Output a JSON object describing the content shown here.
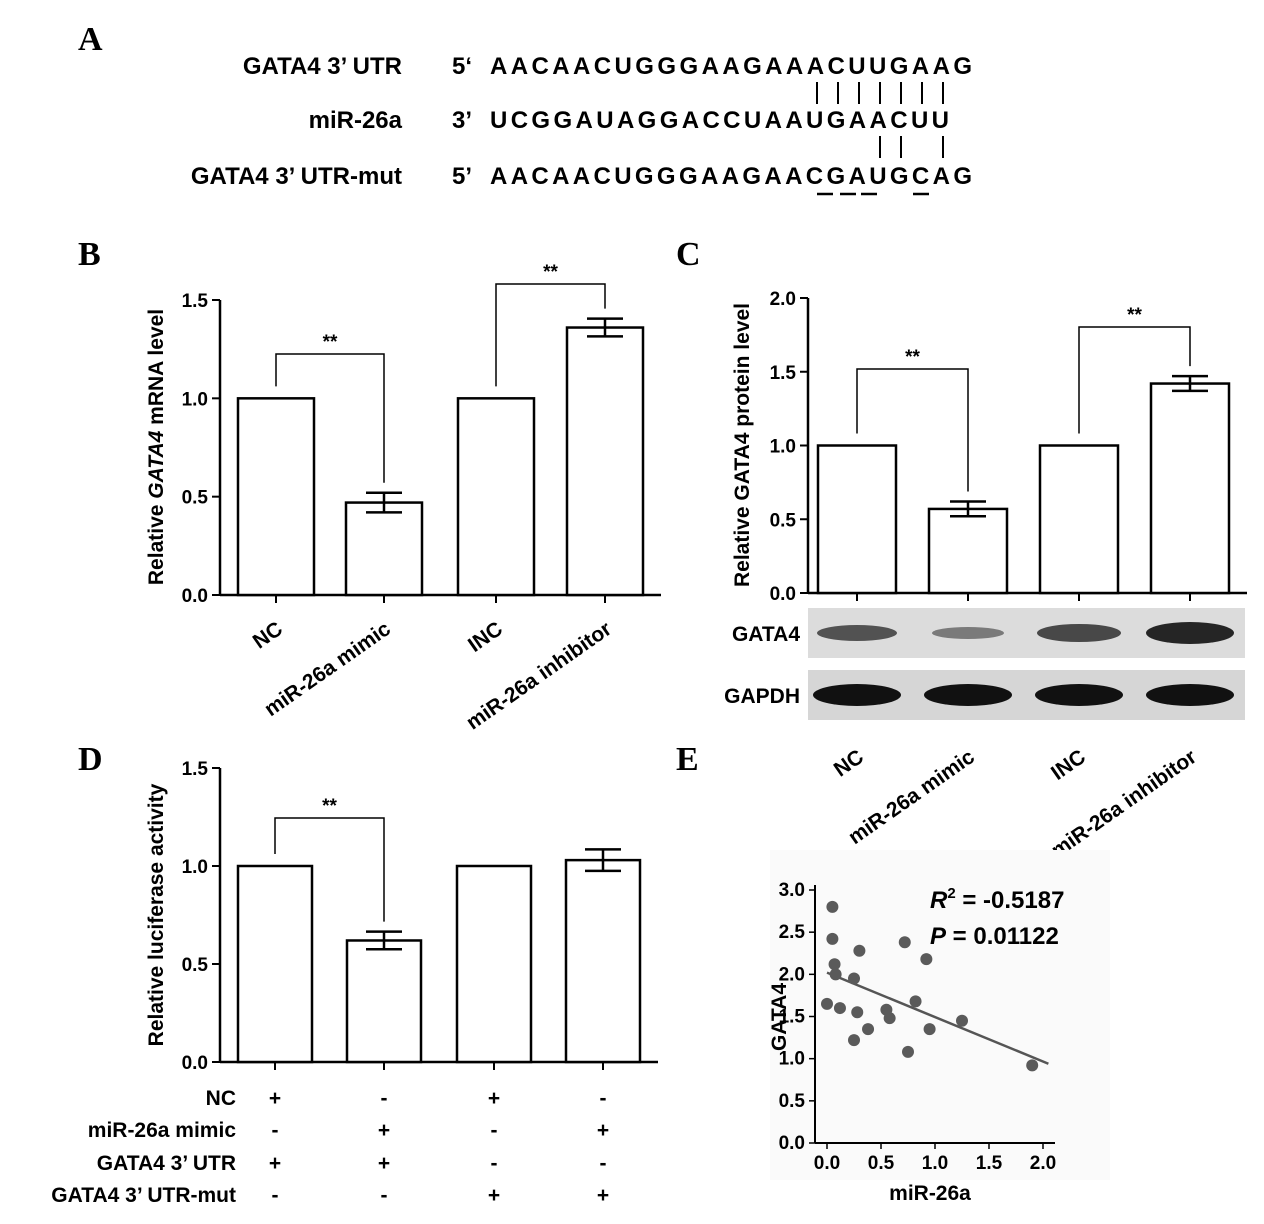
{
  "panel_labels": {
    "a": "A",
    "b": "B",
    "c": "C",
    "d": "D",
    "e": "E"
  },
  "panel_a": {
    "rows": [
      {
        "name": "GATA4 3’ UTR",
        "end": "5‘",
        "seq": "AACAACUGGGAAGAAACUUGAAG"
      },
      {
        "name": "miR-26a",
        "end": "3’",
        "seq": "UCGGAUAGGACCUAAUGAACUU"
      },
      {
        "name": "GATA4 3’ UTR-mut",
        "end": "5’",
        "seq": "AACAACUGGGAAGAACGAUGCAG"
      }
    ]
  },
  "chart_data": [
    {
      "id": "B",
      "type": "bar",
      "ylabel": "Relative GATA4 mRNA level",
      "ylabel_italic_part": "GATA4",
      "categories": [
        "NC",
        "miR-26a mimic",
        "INC",
        "miR-26a inhibitor"
      ],
      "values": [
        1.0,
        0.47,
        1.0,
        1.36
      ],
      "errors": [
        0,
        0.05,
        0,
        0.045
      ],
      "ylim": [
        0,
        1.5
      ],
      "yticks": [
        "0.0",
        "0.5",
        "1.0",
        "1.5"
      ],
      "significance": [
        {
          "pair": [
            0,
            1
          ],
          "label": "**"
        },
        {
          "pair": [
            2,
            3
          ],
          "label": "**"
        }
      ]
    },
    {
      "id": "C",
      "type": "bar",
      "ylabel": "Relative GATA4 protein level",
      "categories": [
        "NC",
        "miR-26a mimic",
        "INC",
        "miR-26a inhibitor"
      ],
      "values": [
        1.0,
        0.57,
        1.0,
        1.42
      ],
      "errors": [
        0,
        0.05,
        0,
        0.05
      ],
      "ylim": [
        0,
        2.0
      ],
      "yticks": [
        "0.0",
        "0.5",
        "1.0",
        "1.5",
        "2.0"
      ],
      "significance": [
        {
          "pair": [
            0,
            1
          ],
          "label": "**"
        },
        {
          "pair": [
            2,
            3
          ],
          "label": "**"
        }
      ],
      "blot_labels": [
        "GATA4",
        "GAPDH"
      ]
    },
    {
      "id": "D",
      "type": "bar",
      "ylabel": "Relative luciferase activity",
      "values": [
        1.0,
        0.62,
        1.0,
        1.03
      ],
      "errors": [
        0,
        0.045,
        0,
        0.055
      ],
      "ylim": [
        0,
        1.5
      ],
      "yticks": [
        "0.0",
        "0.5",
        "1.0",
        "1.5"
      ],
      "significance": [
        {
          "pair": [
            0,
            1
          ],
          "label": "**"
        }
      ],
      "condition_table": [
        {
          "label": "NC",
          "marks": [
            "+",
            "-",
            "+",
            "-"
          ]
        },
        {
          "label": "miR-26a mimic",
          "marks": [
            "-",
            "+",
            "-",
            "+"
          ]
        },
        {
          "label": "GATA4 3’ UTR",
          "marks": [
            "+",
            "+",
            "-",
            "-"
          ]
        },
        {
          "label": "GATA4 3’ UTR-mut",
          "marks": [
            "-",
            "-",
            "+",
            "+"
          ]
        }
      ]
    },
    {
      "id": "E",
      "type": "scatter",
      "xlabel": "miR-26a",
      "ylabel": "GATA4",
      "xlim": [
        0,
        2.0
      ],
      "ylim": [
        0,
        3.0
      ],
      "xticks": [
        "0.0",
        "0.5",
        "1.0",
        "1.5",
        "2.0"
      ],
      "yticks": [
        "0.0",
        "0.5",
        "1.0",
        "1.5",
        "2.0",
        "2.5",
        "3.0"
      ],
      "points": [
        [
          0.05,
          2.8
        ],
        [
          0.05,
          2.42
        ],
        [
          0.07,
          2.12
        ],
        [
          0.08,
          2.0
        ],
        [
          0.0,
          1.65
        ],
        [
          0.12,
          1.6
        ],
        [
          0.25,
          1.95
        ],
        [
          0.3,
          2.28
        ],
        [
          0.28,
          1.55
        ],
        [
          0.38,
          1.35
        ],
        [
          0.25,
          1.22
        ],
        [
          0.55,
          1.58
        ],
        [
          0.58,
          1.48
        ],
        [
          0.72,
          2.38
        ],
        [
          0.82,
          1.68
        ],
        [
          0.92,
          2.18
        ],
        [
          0.95,
          1.35
        ],
        [
          0.75,
          1.08
        ],
        [
          1.25,
          1.45
        ],
        [
          1.9,
          0.92
        ]
      ],
      "fit_line": [
        [
          0.0,
          2.02
        ],
        [
          2.05,
          0.94
        ]
      ],
      "stats": {
        "r2_label": "R",
        "r2_sup": "2",
        "r2_text": " = -0.5187",
        "p_label": "P",
        "p_text": " = 0.01122"
      }
    }
  ]
}
